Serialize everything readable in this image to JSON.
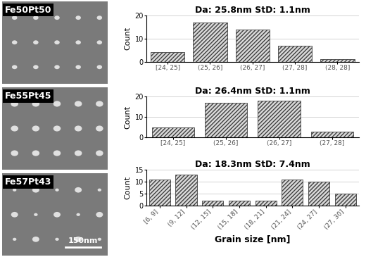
{
  "chart_data": [
    {
      "type": "bar",
      "title": "Da: 25.8nm StD: 1.1nm",
      "categories": [
        "[24, 25]",
        "(25, 26]",
        "(26, 27]",
        "(27, 28]",
        "(28, 28]"
      ],
      "values": [
        4,
        17,
        14,
        7,
        1
      ],
      "color": "#d9d9d9",
      "y_label": "Count",
      "ylim": [
        0,
        20
      ],
      "yticks": [
        0,
        10,
        20
      ],
      "grid": true
    },
    {
      "type": "bar",
      "title": "Da: 26.4nm StD: 1.1nm",
      "categories": [
        "[24, 25]",
        "(25, 26]",
        "(26, 27]",
        "(27, 28]"
      ],
      "values": [
        5,
        17,
        18,
        3
      ],
      "color": "#d9d9d9",
      "y_label": "Count",
      "ylim": [
        0,
        20
      ],
      "yticks": [
        0,
        10,
        20
      ],
      "grid": true
    },
    {
      "type": "bar",
      "title": "Da: 18.3nm StD: 7.4nm",
      "categories": [
        "[6, 9]",
        "(9, 12]",
        "(12, 15]",
        "(15, 18]",
        "(18, 21]",
        "(21, 24]",
        "(24, 27]",
        "(27, 30]"
      ],
      "values": [
        11,
        13,
        2,
        2,
        2,
        11,
        10,
        5
      ],
      "color": "#d9d9d9",
      "y_label": "Count",
      "x_label": "Grain size [nm]",
      "ylim": [
        0,
        15
      ],
      "yticks": [
        0,
        5,
        10,
        15
      ],
      "grid": true
    }
  ],
  "images": {
    "panels": [
      "Fe50Pt50",
      "Fe55Pt45",
      "Fe57Pt43"
    ],
    "scale_bar": "150nm"
  }
}
